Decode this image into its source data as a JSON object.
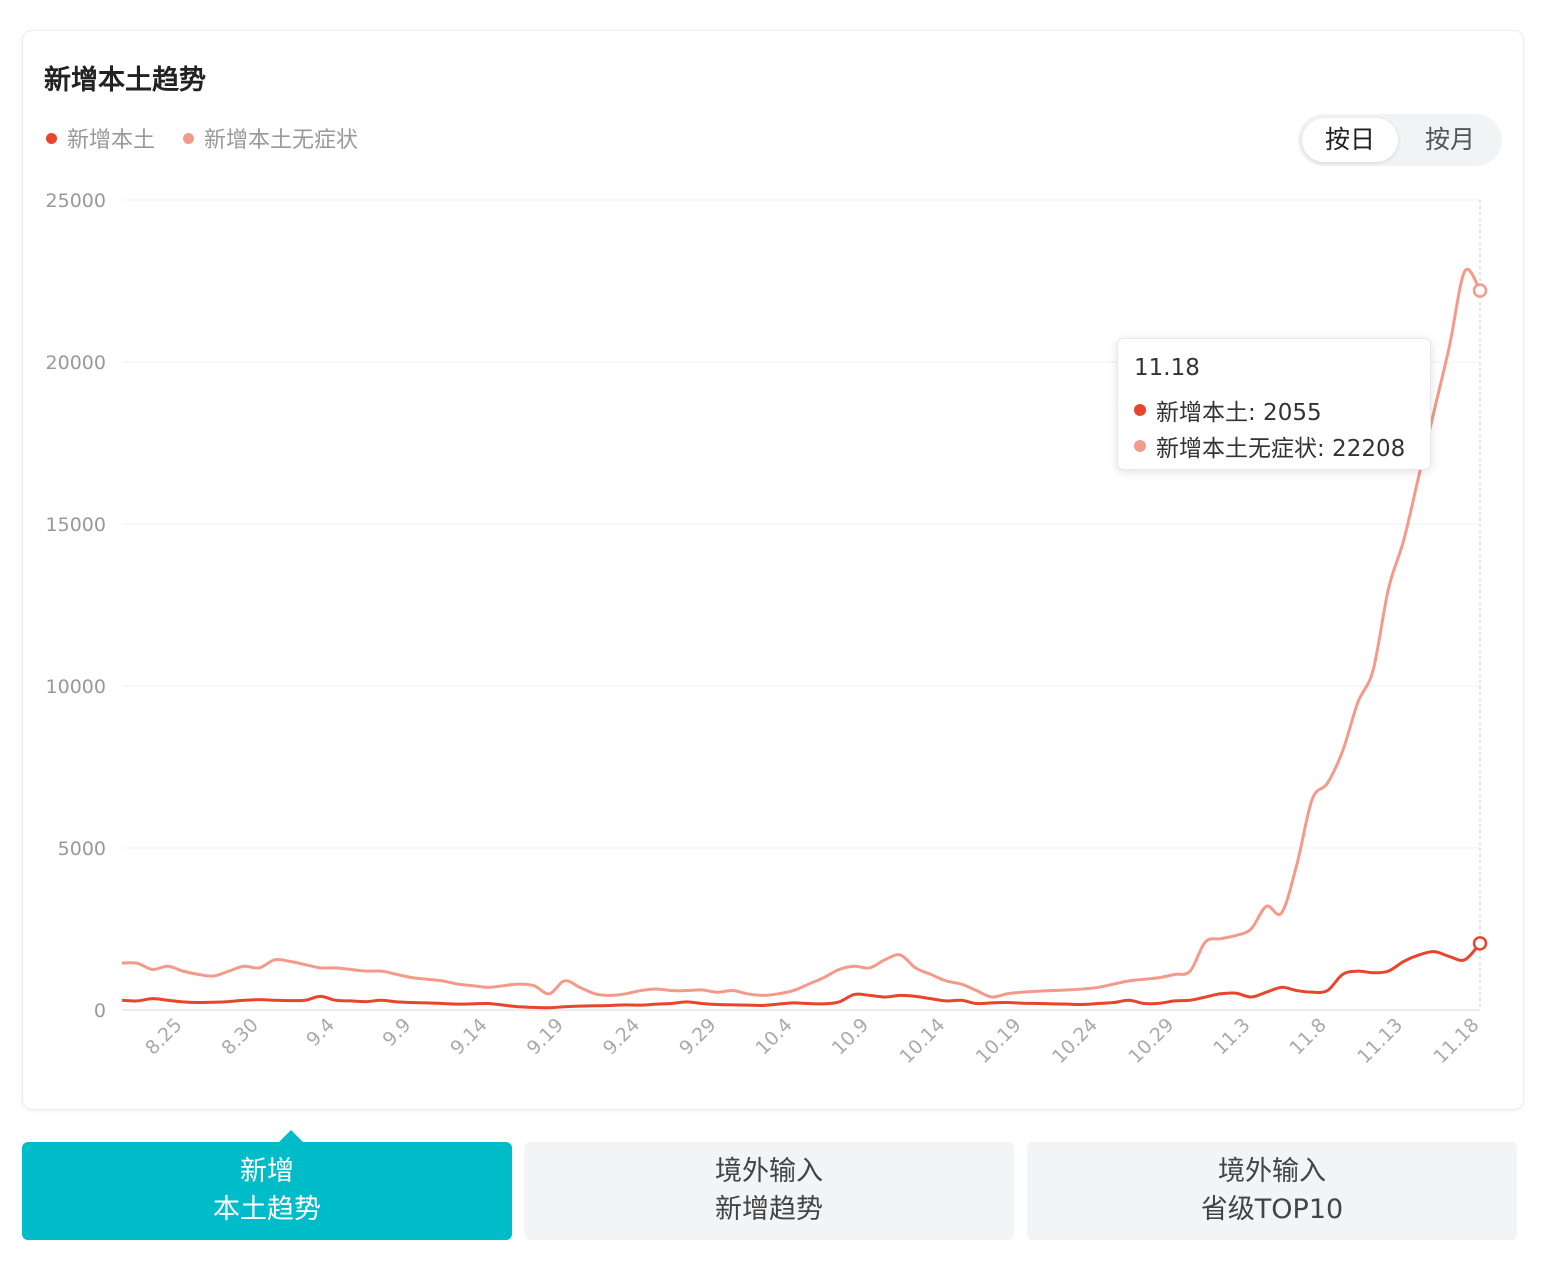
{
  "header": {
    "title": "新增本土趋势"
  },
  "toggle": {
    "day_label": "按日",
    "month_label": "按月",
    "selected": "按日"
  },
  "tooltip": {
    "date": "11.18",
    "rows": [
      {
        "label": "新增本土: 2055",
        "color": "#e8452c"
      },
      {
        "label": "新增本土无症状: 22208",
        "color": "#f49a8a"
      }
    ]
  },
  "tabs": [
    {
      "line1": "新增",
      "line2": "本土趋势",
      "active": true
    },
    {
      "line1": "境外输入",
      "line2": "新增趋势",
      "active": false
    },
    {
      "line1": "境外输入",
      "line2": "省级TOP10",
      "active": false
    }
  ],
  "colors": {
    "local": "#e8452c",
    "asymptomatic": "#f49a8a",
    "accent": "#00bcc8"
  },
  "chart_data": {
    "type": "line",
    "title": "新增本土趋势",
    "xlabel": "",
    "ylabel": "",
    "ylim": [
      0,
      25000
    ],
    "yticks": [
      "0",
      "5000",
      "10000",
      "15000",
      "20000",
      "25000"
    ],
    "grid": true,
    "legend": "top-left",
    "x": [
      "8.21",
      "8.22",
      "8.23",
      "8.24",
      "8.25",
      "8.26",
      "8.27",
      "8.28",
      "8.29",
      "8.30",
      "8.31",
      "9.1",
      "9.2",
      "9.3",
      "9.4",
      "9.5",
      "9.6",
      "9.7",
      "9.8",
      "9.9",
      "9.10",
      "9.11",
      "9.12",
      "9.13",
      "9.14",
      "9.15",
      "9.16",
      "9.17",
      "9.18",
      "9.19",
      "9.20",
      "9.21",
      "9.22",
      "9.23",
      "9.24",
      "9.25",
      "9.26",
      "9.27",
      "9.28",
      "9.29",
      "9.30",
      "10.1",
      "10.2",
      "10.3",
      "10.4",
      "10.5",
      "10.6",
      "10.7",
      "10.8",
      "10.9",
      "10.10",
      "10.11",
      "10.12",
      "10.13",
      "10.14",
      "10.15",
      "10.16",
      "10.17",
      "10.18",
      "10.19",
      "10.20",
      "10.21",
      "10.22",
      "10.23",
      "10.24",
      "10.25",
      "10.26",
      "10.27",
      "10.28",
      "10.29",
      "10.30",
      "10.31",
      "11.1",
      "11.2",
      "11.3",
      "11.4",
      "11.5",
      "11.6",
      "11.7",
      "11.8",
      "11.9",
      "11.10",
      "11.11",
      "11.12",
      "11.13",
      "11.14",
      "11.15",
      "11.16",
      "11.17",
      "11.18"
    ],
    "xticks": [
      "8.25",
      "8.30",
      "9.4",
      "9.9",
      "9.14",
      "9.19",
      "9.24",
      "9.29",
      "10.4",
      "10.9",
      "10.14",
      "10.19",
      "10.24",
      "10.29",
      "11.3",
      "11.8",
      "11.13",
      "11.18"
    ],
    "series": [
      {
        "name": "新增本土",
        "color": "#e8452c",
        "values": [
          300,
          280,
          350,
          300,
          250,
          230,
          240,
          260,
          300,
          320,
          300,
          290,
          300,
          420,
          300,
          280,
          260,
          300,
          250,
          230,
          220,
          200,
          180,
          190,
          200,
          150,
          100,
          80,
          70,
          100,
          120,
          130,
          140,
          160,
          150,
          180,
          200,
          250,
          200,
          170,
          160,
          150,
          140,
          180,
          220,
          200,
          190,
          250,
          480,
          450,
          400,
          450,
          420,
          350,
          280,
          300,
          200,
          220,
          230,
          210,
          200,
          190,
          180,
          170,
          200,
          230,
          300,
          200,
          210,
          280,
          300,
          400,
          500,
          520,
          400,
          550,
          700,
          600,
          550,
          600,
          1100,
          1200,
          1150,
          1200,
          1500,
          1700,
          1800,
          1650,
          1550,
          2055
        ]
      },
      {
        "name": "新增本土无症状",
        "color": "#f49a8a",
        "values": [
          1450,
          1440,
          1250,
          1350,
          1200,
          1100,
          1050,
          1200,
          1350,
          1300,
          1550,
          1500,
          1400,
          1300,
          1300,
          1250,
          1200,
          1200,
          1100,
          1000,
          950,
          900,
          800,
          750,
          700,
          750,
          800,
          750,
          500,
          900,
          700,
          500,
          450,
          500,
          600,
          650,
          600,
          600,
          620,
          550,
          600,
          500,
          450,
          500,
          600,
          800,
          1000,
          1250,
          1350,
          1300,
          1550,
          1700,
          1300,
          1100,
          900,
          800,
          600,
          400,
          500,
          550,
          580,
          600,
          620,
          650,
          700,
          800,
          900,
          950,
          1000,
          1100,
          1200,
          2100,
          2200,
          2300,
          2500,
          3200,
          3000,
          4500,
          6500,
          7000,
          8000,
          9500,
          10500,
          13000,
          14500,
          16500,
          18500,
          20500,
          22800,
          22208
        ]
      }
    ]
  }
}
